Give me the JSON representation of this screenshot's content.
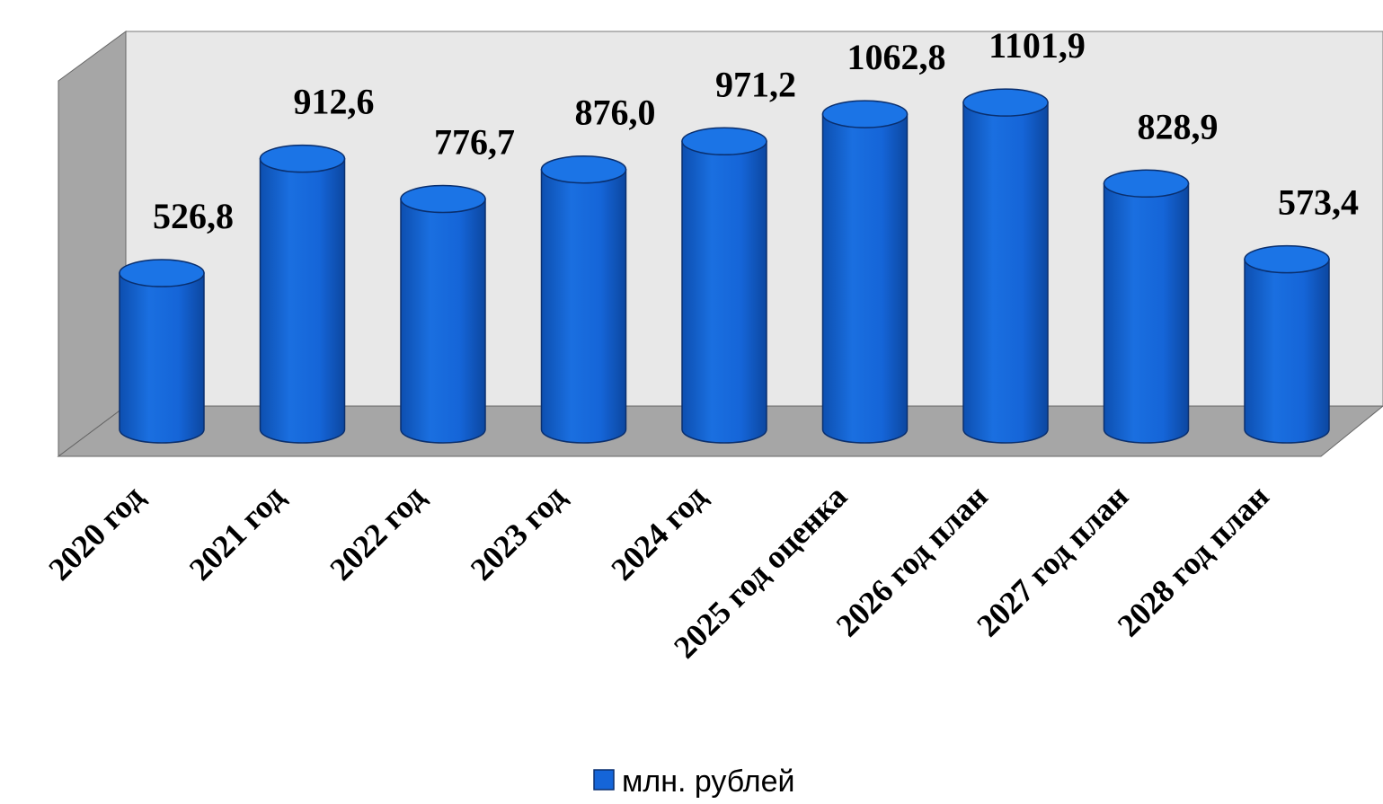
{
  "chart_data": {
    "type": "bar",
    "style": "3d-cylinder",
    "categories": [
      "2020 год",
      "2021 год",
      "2022 год",
      "2023 год",
      "2024 год",
      "2025 год оценка",
      "2026 год план",
      "2027 год план",
      "2028 год план"
    ],
    "values": [
      526.8,
      912.6,
      776.7,
      876.0,
      971.2,
      1062.8,
      1101.9,
      828.9,
      573.4
    ],
    "value_labels": [
      "526,8",
      "912,6",
      "776,7",
      "876,0",
      "971,2",
      "1062,8",
      "1101,9",
      "828,9",
      "573,4"
    ],
    "series": [
      {
        "name": "млн. рублей",
        "values": [
          526.8,
          912.6,
          776.7,
          876.0,
          971.2,
          1062.8,
          1101.9,
          828.9,
          573.4
        ]
      }
    ],
    "legend_position": "bottom-center",
    "grid": false,
    "colors": {
      "bar": "#1565d8",
      "bar_top": "#1b74e6",
      "bar_outline": "#0a2f6e",
      "back_wall": "#e8e8e8",
      "side_wall": "#a6a6a6",
      "floor": "#a6a6a6"
    }
  }
}
